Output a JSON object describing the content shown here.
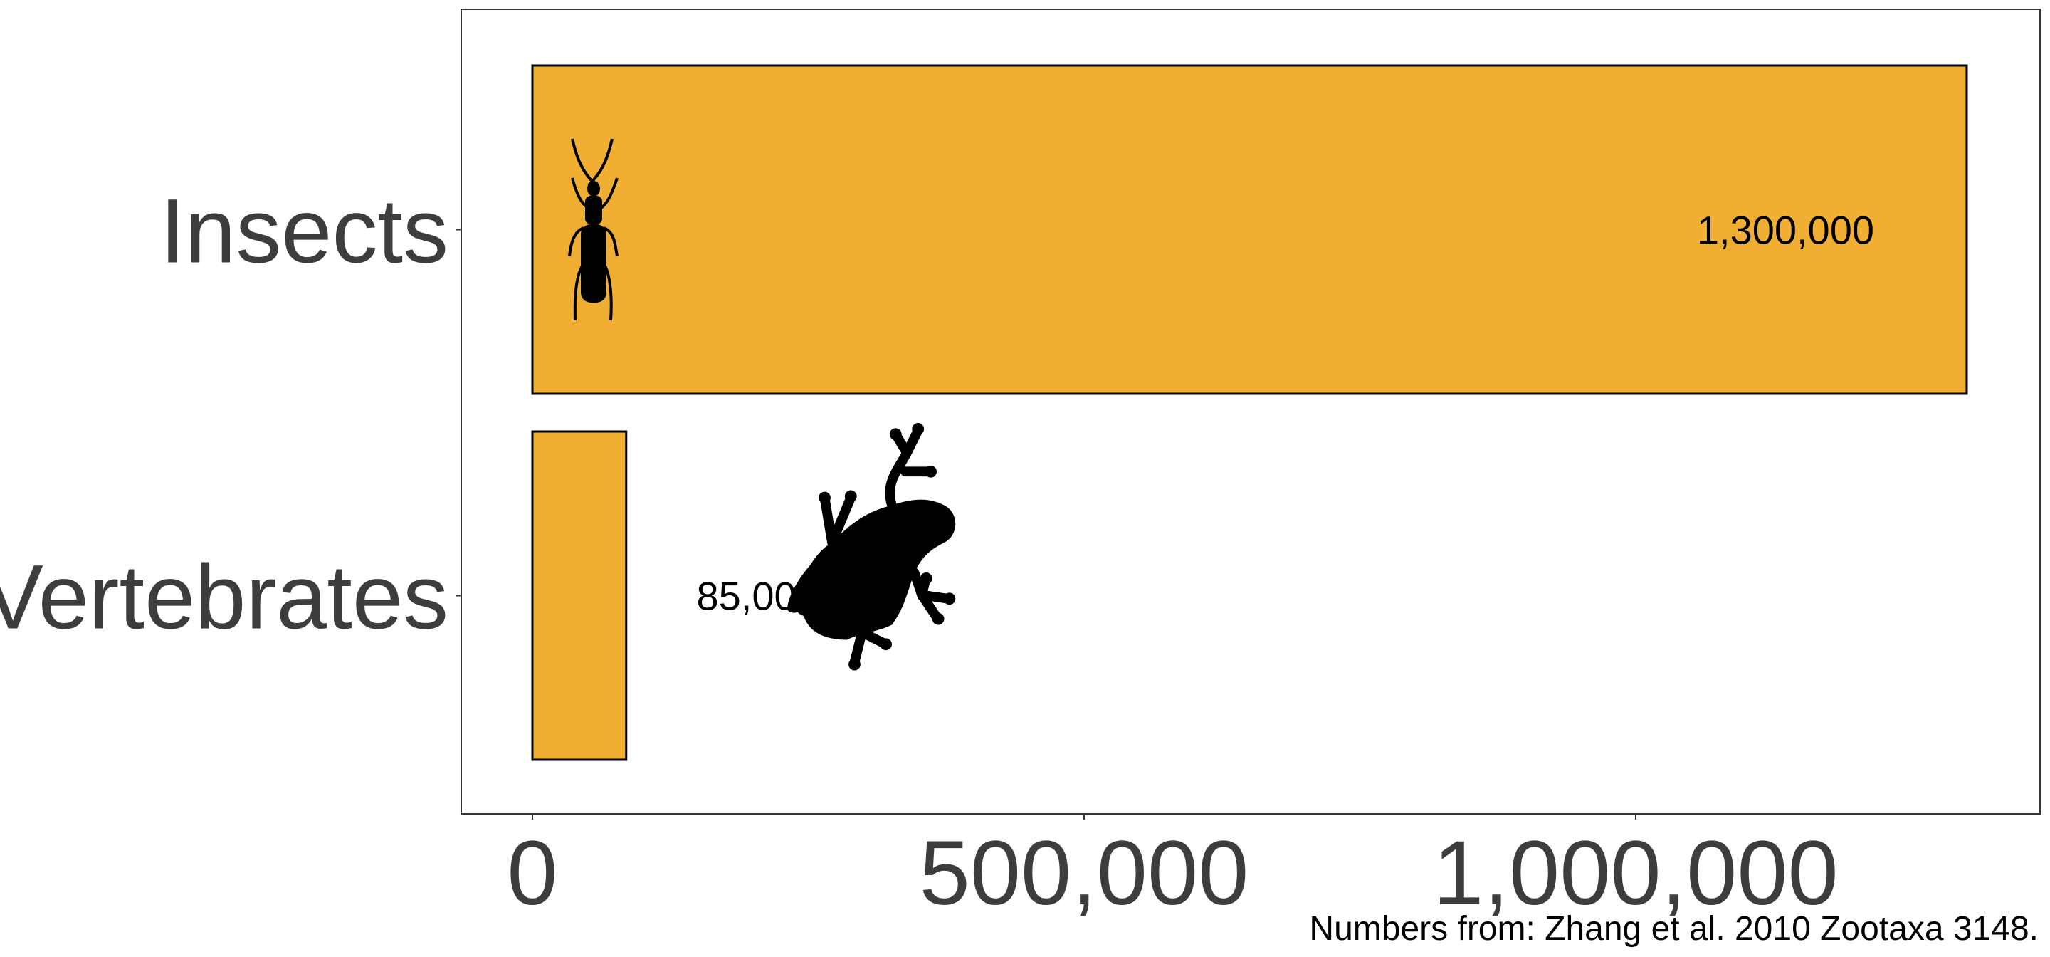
{
  "chart_data": {
    "type": "bar",
    "orientation": "horizontal",
    "categories": [
      "Insects",
      "Vertebrates"
    ],
    "values": [
      1300000,
      85000
    ],
    "data_labels": [
      "1,300,000",
      "85,000"
    ],
    "xlim": [
      -62500,
      1362500
    ],
    "xticks": [
      0,
      500000,
      1000000
    ],
    "xtick_labels": [
      "0",
      "500,000",
      "1,000,000"
    ],
    "xlabel": "",
    "ylabel": "",
    "grid": false,
    "bar_color": "#F0AF32",
    "bar_outline": "#000000",
    "icons": [
      "beetle-silhouette",
      "frog-silhouette"
    ],
    "caption": "Numbers from: Zhang et al. 2010 Zootaxa 3148."
  }
}
